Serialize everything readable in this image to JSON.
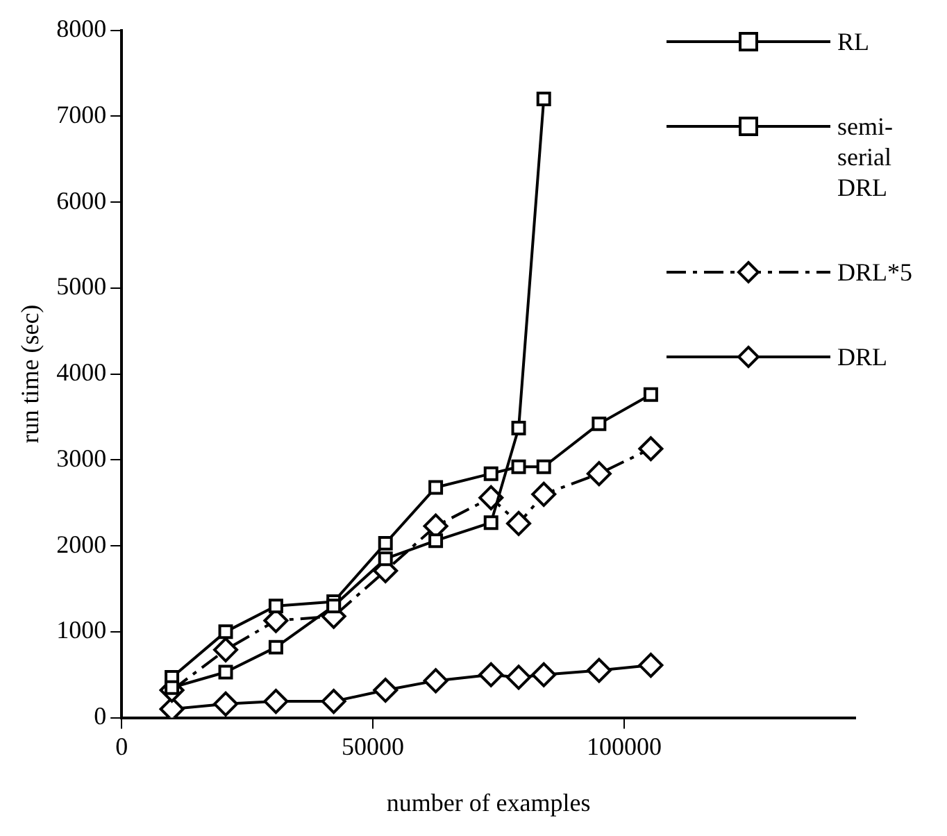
{
  "chart_data": {
    "type": "line",
    "xlabel": "number of examples",
    "ylabel": "run time (sec)",
    "xlim": [
      0,
      146000
    ],
    "xticks": [
      0,
      50000,
      100000
    ],
    "ylim": [
      0,
      8000
    ],
    "yticks": [
      0,
      1000,
      2000,
      3000,
      4000,
      5000,
      6000,
      7000,
      8000
    ],
    "grid": false,
    "legend": "top right",
    "series": [
      {
        "name": "RL",
        "color": "#000000",
        "marker": "square",
        "line_style": "solid",
        "x": [
          10000,
          20700,
          30700,
          42200,
          52500,
          62500,
          73500,
          79000,
          84000
        ],
        "values": [
          350,
          530,
          820,
          1300,
          1850,
          2060,
          2270,
          3370,
          7200
        ]
      },
      {
        "name": "semi-serial DRL",
        "color": "#000000",
        "marker": "square",
        "line_style": "solid",
        "x": [
          10000,
          20700,
          30700,
          42200,
          52500,
          62500,
          73500,
          79000,
          84000,
          95000,
          105300
        ],
        "values": [
          470,
          1000,
          1300,
          1350,
          2030,
          2680,
          2840,
          2920,
          2920,
          3420,
          3760
        ]
      },
      {
        "name": "DRL*5",
        "color": "#000000",
        "marker": "diamond",
        "line_style": "dashed",
        "x": [
          10000,
          20700,
          30700,
          42200,
          52500,
          62500,
          73500,
          79000,
          84000,
          95000,
          105300
        ],
        "values": [
          320,
          790,
          1130,
          1180,
          1710,
          2230,
          2560,
          2260,
          2600,
          2840,
          3130
        ]
      },
      {
        "name": "DRL",
        "color": "#000000",
        "marker": "diamond",
        "line_style": "solid",
        "x": [
          10000,
          20700,
          30700,
          42200,
          52500,
          62500,
          73500,
          79000,
          84000,
          95000,
          105300
        ],
        "values": [
          100,
          160,
          190,
          190,
          320,
          430,
          500,
          470,
          500,
          550,
          610
        ]
      }
    ]
  }
}
